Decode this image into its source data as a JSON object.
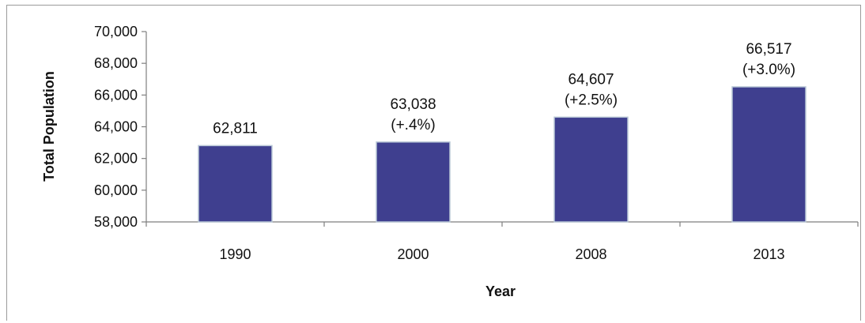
{
  "chart_data": {
    "type": "bar",
    "title": "",
    "xlabel": "Year",
    "ylabel": "Total Population",
    "categories": [
      "1990",
      "2000",
      "2008",
      "2013"
    ],
    "values": [
      62811,
      63038,
      64607,
      66517
    ],
    "data_labels": [
      [
        "62,811"
      ],
      [
        "63,038",
        "(+.4%)"
      ],
      [
        "64,607",
        "(+2.5%)"
      ],
      [
        "66,517",
        "(+3.0%)"
      ]
    ],
    "ylim": [
      58000,
      70000
    ],
    "yticks": [
      58000,
      60000,
      62000,
      64000,
      66000,
      68000,
      70000
    ],
    "ytick_labels": [
      "58,000",
      "60,000",
      "62,000",
      "64,000",
      "66,000",
      "68,000",
      "70,000"
    ],
    "grid": false,
    "legend": "none",
    "colors": {
      "bar": "#3f3f8f",
      "bar_edge": "#b9c7d6",
      "axis": "#7f7f7f"
    }
  }
}
